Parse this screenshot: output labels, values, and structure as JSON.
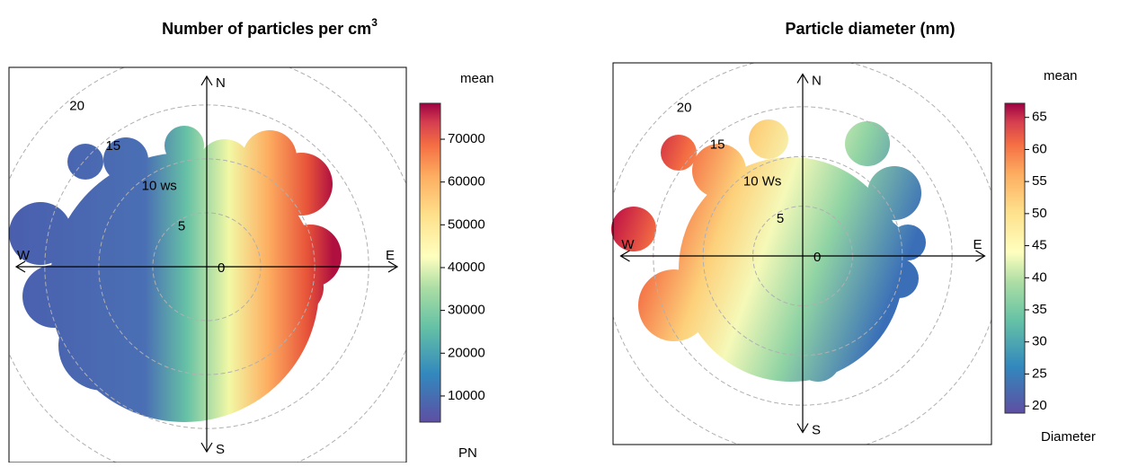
{
  "chart_data": [
    {
      "type": "polar",
      "title": "Number of particles per cm",
      "title_superscript": "3",
      "compass": [
        "N",
        "E",
        "S",
        "W"
      ],
      "rlim": [
        0,
        18.4
      ],
      "rticks": [
        0,
        5,
        {
          "value": 10,
          "label": "10 ws"
        },
        15,
        20
      ],
      "legend_title": "mean",
      "legend_label": "PN",
      "clim": [
        3900,
        78400
      ],
      "cticks": [
        10000,
        20000,
        30000,
        40000,
        50000,
        60000,
        70000
      ]
    },
    {
      "type": "polar",
      "title": "Particle diameter (nm)",
      "compass": [
        "N",
        "E",
        "S",
        "W"
      ],
      "rlim": [
        0,
        19
      ],
      "rticks": [
        0,
        5,
        {
          "value": 10,
          "label": "10 Ws"
        },
        15,
        20
      ],
      "legend_title": "mean",
      "legend_label": "Diameter",
      "clim": [
        18.9,
        67.2
      ],
      "cticks": [
        20,
        25,
        30,
        35,
        40,
        45,
        50,
        55,
        60,
        65
      ]
    }
  ]
}
